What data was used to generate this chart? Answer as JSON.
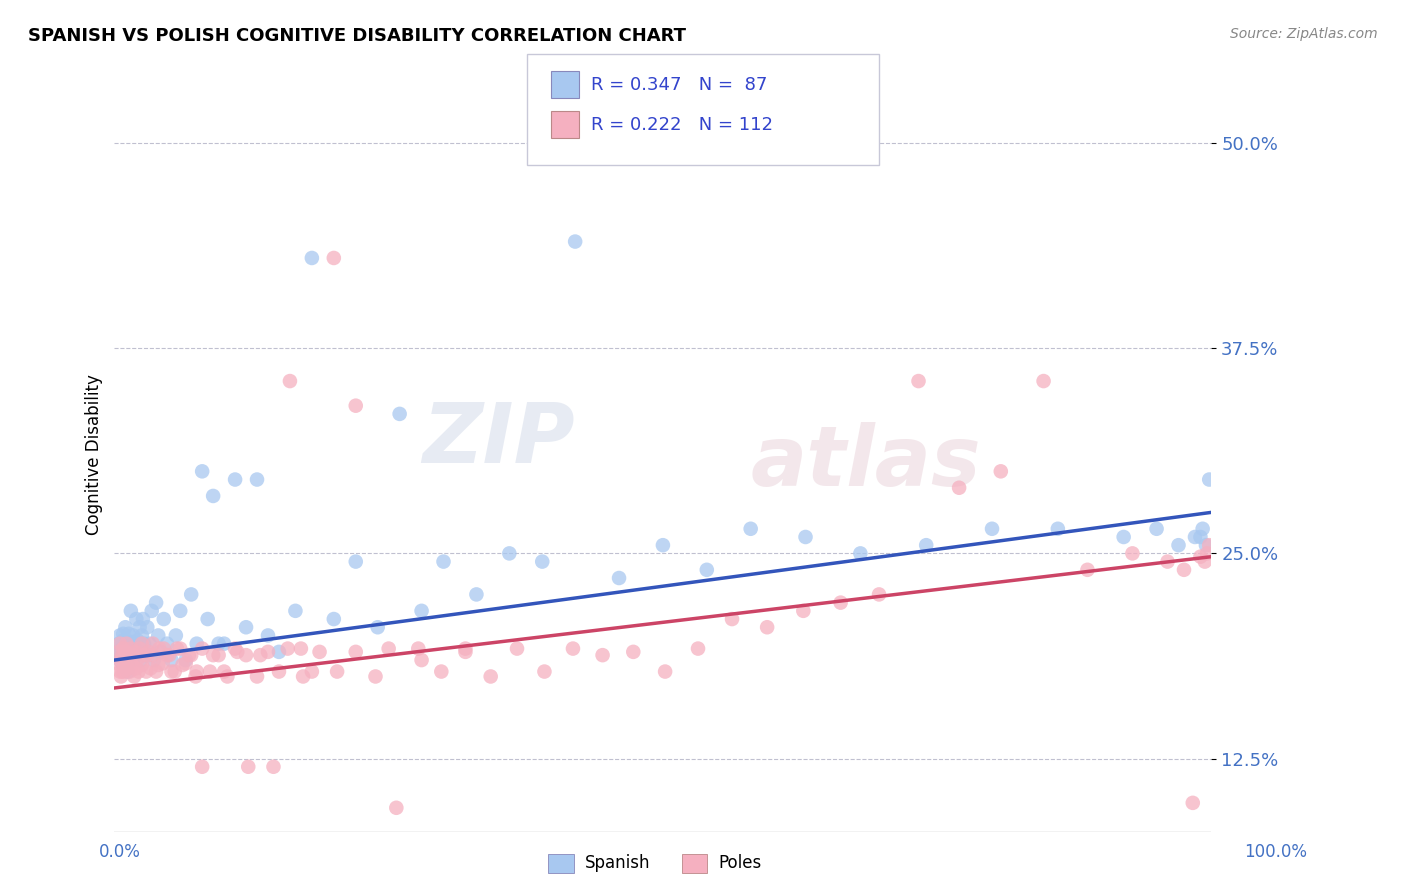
{
  "title": "SPANISH VS POLISH COGNITIVE DISABILITY CORRELATION CHART",
  "source": "Source: ZipAtlas.com",
  "ylabel": "Cognitive Disability",
  "xlim": [
    0.0,
    1.0
  ],
  "ylim": [
    0.08,
    0.54
  ],
  "yticks": [
    0.125,
    0.25,
    0.375,
    0.5
  ],
  "ytick_labels": [
    "12.5%",
    "25.0%",
    "37.5%",
    "50.0%"
  ],
  "spanish_color": "#a8c8f0",
  "poles_color": "#f5b0c0",
  "spanish_line_color": "#3355bb",
  "poles_line_color": "#cc4466",
  "spanish_R": 0.347,
  "spanish_N": 87,
  "poles_R": 0.222,
  "poles_N": 112,
  "legend_label_spanish": "Spanish",
  "legend_label_poles": "Poles",
  "spanish_line_x0": 0.0,
  "spanish_line_y0": 0.185,
  "spanish_line_x1": 1.0,
  "spanish_line_y1": 0.275,
  "poles_line_x0": 0.0,
  "poles_line_y0": 0.168,
  "poles_line_x1": 1.0,
  "poles_line_y1": 0.248,
  "spanish_x": [
    0.003,
    0.004,
    0.005,
    0.005,
    0.006,
    0.006,
    0.007,
    0.007,
    0.008,
    0.008,
    0.009,
    0.01,
    0.01,
    0.011,
    0.012,
    0.012,
    0.013,
    0.014,
    0.015,
    0.015,
    0.016,
    0.017,
    0.018,
    0.019,
    0.02,
    0.021,
    0.022,
    0.023,
    0.024,
    0.025,
    0.026,
    0.027,
    0.028,
    0.03,
    0.032,
    0.034,
    0.036,
    0.038,
    0.04,
    0.042,
    0.045,
    0.048,
    0.052,
    0.056,
    0.06,
    0.065,
    0.07,
    0.075,
    0.08,
    0.085,
    0.09,
    0.095,
    0.1,
    0.11,
    0.12,
    0.13,
    0.14,
    0.15,
    0.165,
    0.18,
    0.2,
    0.22,
    0.24,
    0.26,
    0.28,
    0.3,
    0.33,
    0.36,
    0.39,
    0.42,
    0.46,
    0.5,
    0.54,
    0.58,
    0.63,
    0.68,
    0.74,
    0.8,
    0.86,
    0.92,
    0.95,
    0.97,
    0.985,
    0.99,
    0.992,
    0.995,
    0.998
  ],
  "spanish_y": [
    0.19,
    0.195,
    0.185,
    0.2,
    0.192,
    0.188,
    0.195,
    0.183,
    0.197,
    0.201,
    0.188,
    0.193,
    0.205,
    0.187,
    0.195,
    0.178,
    0.201,
    0.192,
    0.196,
    0.215,
    0.185,
    0.2,
    0.193,
    0.188,
    0.21,
    0.197,
    0.19,
    0.205,
    0.185,
    0.2,
    0.21,
    0.195,
    0.188,
    0.205,
    0.195,
    0.215,
    0.185,
    0.22,
    0.2,
    0.19,
    0.21,
    0.195,
    0.185,
    0.2,
    0.215,
    0.185,
    0.225,
    0.195,
    0.3,
    0.21,
    0.285,
    0.195,
    0.195,
    0.295,
    0.205,
    0.295,
    0.2,
    0.19,
    0.215,
    0.43,
    0.21,
    0.245,
    0.205,
    0.335,
    0.215,
    0.245,
    0.225,
    0.25,
    0.245,
    0.44,
    0.235,
    0.255,
    0.24,
    0.265,
    0.26,
    0.25,
    0.255,
    0.265,
    0.265,
    0.26,
    0.265,
    0.255,
    0.26,
    0.26,
    0.265,
    0.255,
    0.295
  ],
  "poles_x": [
    0.003,
    0.004,
    0.005,
    0.005,
    0.006,
    0.006,
    0.007,
    0.007,
    0.008,
    0.008,
    0.009,
    0.01,
    0.01,
    0.011,
    0.012,
    0.013,
    0.014,
    0.015,
    0.016,
    0.017,
    0.018,
    0.019,
    0.02,
    0.021,
    0.022,
    0.023,
    0.025,
    0.027,
    0.029,
    0.031,
    0.033,
    0.035,
    0.038,
    0.041,
    0.044,
    0.048,
    0.052,
    0.057,
    0.062,
    0.068,
    0.074,
    0.08,
    0.087,
    0.095,
    0.103,
    0.112,
    0.122,
    0.133,
    0.145,
    0.158,
    0.172,
    0.187,
    0.203,
    0.22,
    0.238,
    0.257,
    0.277,
    0.298,
    0.32,
    0.343,
    0.367,
    0.392,
    0.418,
    0.445,
    0.473,
    0.502,
    0.532,
    0.563,
    0.595,
    0.628,
    0.662,
    0.697,
    0.733,
    0.77,
    0.808,
    0.847,
    0.887,
    0.928,
    0.96,
    0.975,
    0.983,
    0.99,
    0.994,
    0.996,
    0.998,
    0.025,
    0.03,
    0.035,
    0.04,
    0.045,
    0.05,
    0.055,
    0.06,
    0.065,
    0.07,
    0.075,
    0.08,
    0.09,
    0.1,
    0.11,
    0.12,
    0.13,
    0.14,
    0.15,
    0.16,
    0.17,
    0.18,
    0.2,
    0.22,
    0.25,
    0.28,
    0.32
  ],
  "poles_y": [
    0.183,
    0.19,
    0.178,
    0.195,
    0.185,
    0.175,
    0.188,
    0.178,
    0.192,
    0.185,
    0.178,
    0.19,
    0.182,
    0.195,
    0.18,
    0.188,
    0.178,
    0.192,
    0.182,
    0.188,
    0.175,
    0.19,
    0.18,
    0.185,
    0.178,
    0.192,
    0.182,
    0.188,
    0.178,
    0.19,
    0.18,
    0.188,
    0.178,
    0.192,
    0.183,
    0.188,
    0.178,
    0.192,
    0.182,
    0.188,
    0.175,
    0.192,
    0.178,
    0.188,
    0.175,
    0.19,
    0.12,
    0.188,
    0.12,
    0.192,
    0.175,
    0.19,
    0.178,
    0.19,
    0.175,
    0.095,
    0.192,
    0.178,
    0.19,
    0.175,
    0.192,
    0.178,
    0.192,
    0.188,
    0.19,
    0.178,
    0.192,
    0.21,
    0.205,
    0.215,
    0.22,
    0.225,
    0.355,
    0.29,
    0.3,
    0.355,
    0.24,
    0.25,
    0.245,
    0.24,
    0.098,
    0.248,
    0.245,
    0.25,
    0.255,
    0.195,
    0.188,
    0.195,
    0.182,
    0.192,
    0.188,
    0.178,
    0.192,
    0.183,
    0.188,
    0.178,
    0.12,
    0.188,
    0.178,
    0.192,
    0.188,
    0.175,
    0.19,
    0.178,
    0.355,
    0.192,
    0.178,
    0.43,
    0.34,
    0.192,
    0.185,
    0.192
  ]
}
